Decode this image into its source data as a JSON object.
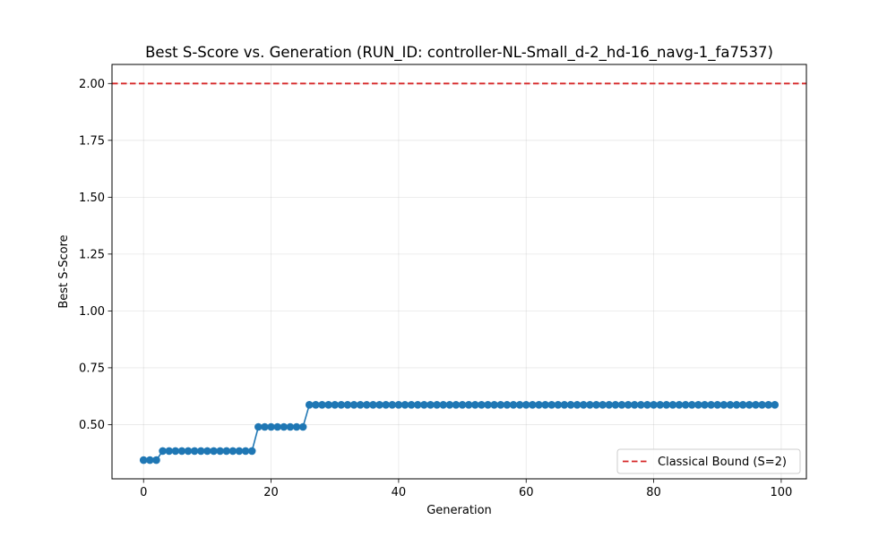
{
  "chart_data": {
    "type": "line",
    "title": "Best S-Score vs. Generation (RUN_ID: controller-NL-Small_d-2_hd-16_navg-1_fa7537)",
    "xlabel": "Generation",
    "ylabel": "Best S-Score",
    "xlim": [
      -4.95,
      103.95
    ],
    "ylim": [
      0.2617,
      2.0838
    ],
    "xticks": [
      0,
      20,
      40,
      60,
      80,
      100
    ],
    "xtick_labels": [
      "0",
      "20",
      "40",
      "60",
      "80",
      "100"
    ],
    "yticks": [
      0.5,
      0.75,
      1.0,
      1.25,
      1.5,
      1.75,
      2.0
    ],
    "ytick_labels": [
      "0.50",
      "0.75",
      "1.00",
      "1.25",
      "1.50",
      "1.75",
      "2.00"
    ],
    "grid": true,
    "legend_position": "lower-right",
    "series": [
      {
        "color": "#1f77b4",
        "marker": "circle",
        "segments": [
          {
            "from": 0,
            "to": 2,
            "value": 0.344
          },
          {
            "from": 3,
            "to": 17,
            "value": 0.384
          },
          {
            "from": 18,
            "to": 25,
            "value": 0.49
          },
          {
            "from": 26,
            "to": 99,
            "value": 0.587
          }
        ]
      }
    ],
    "reference_lines": [
      {
        "name": "Classical Bound (S=2)",
        "y": 2.0,
        "color": "#d62728",
        "style": "dashed"
      }
    ]
  }
}
